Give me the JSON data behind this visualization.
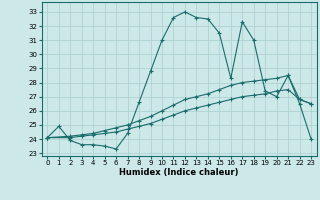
{
  "xlabel": "Humidex (Indice chaleur)",
  "background_color": "#cce8e8",
  "grid_color": "#aacece",
  "line_color": "#1a6b6b",
  "xlim": [
    -0.5,
    23.5
  ],
  "ylim": [
    22.8,
    33.7
  ],
  "yticks": [
    23,
    24,
    25,
    26,
    27,
    28,
    29,
    30,
    31,
    32,
    33
  ],
  "xticks": [
    0,
    1,
    2,
    3,
    4,
    5,
    6,
    7,
    8,
    9,
    10,
    11,
    12,
    13,
    14,
    15,
    16,
    17,
    18,
    19,
    20,
    21,
    22,
    23
  ],
  "line1_x": [
    0,
    1,
    2,
    3,
    4,
    5,
    6,
    7,
    8,
    9,
    10,
    11,
    12,
    13,
    14,
    15,
    16,
    17,
    18,
    19,
    20,
    21,
    22,
    23
  ],
  "line1_y": [
    24.1,
    24.9,
    23.9,
    23.6,
    23.6,
    23.5,
    23.3,
    24.4,
    26.6,
    28.8,
    31.0,
    32.6,
    33.0,
    32.6,
    32.5,
    31.5,
    28.3,
    32.3,
    31.0,
    27.4,
    27.0,
    28.5,
    26.5,
    24.0
  ],
  "line2_x": [
    0,
    2,
    3,
    4,
    5,
    6,
    7,
    8,
    9,
    10,
    11,
    12,
    13,
    14,
    15,
    16,
    17,
    18,
    19,
    20,
    21,
    22,
    23
  ],
  "line2_y": [
    24.1,
    24.1,
    24.2,
    24.3,
    24.4,
    24.5,
    24.7,
    24.9,
    25.1,
    25.4,
    25.7,
    26.0,
    26.2,
    26.4,
    26.6,
    26.8,
    27.0,
    27.1,
    27.2,
    27.4,
    27.5,
    26.8,
    26.5
  ],
  "line3_x": [
    0,
    2,
    3,
    4,
    5,
    6,
    7,
    8,
    9,
    10,
    11,
    12,
    13,
    14,
    15,
    16,
    17,
    18,
    19,
    20,
    21,
    22,
    23
  ],
  "line3_y": [
    24.1,
    24.2,
    24.3,
    24.4,
    24.6,
    24.8,
    25.0,
    25.3,
    25.6,
    26.0,
    26.4,
    26.8,
    27.0,
    27.2,
    27.5,
    27.8,
    28.0,
    28.1,
    28.2,
    28.3,
    28.5,
    26.8,
    26.5
  ],
  "xlabel_fontsize": 6,
  "tick_fontsize": 5
}
